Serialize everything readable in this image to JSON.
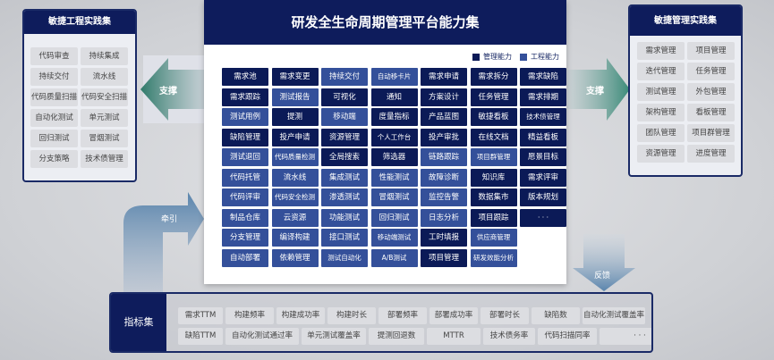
{
  "colors": {
    "engineering_dark": "#0b1a57",
    "management_light": "#34509a",
    "chip": "#dcdde1"
  },
  "left_panel": {
    "title": "敏捷工程实践集",
    "items": [
      "代码审查",
      "持续集成",
      "持续交付",
      "流水线",
      "代码质量扫描",
      "代码安全扫描",
      "自动化测试",
      "单元测试",
      "回归测试",
      "冒烟测试",
      "分支策略",
      "技术债管理"
    ]
  },
  "right_panel": {
    "title": "敏捷管理实践集",
    "items": [
      "需求管理",
      "项目管理",
      "迭代管理",
      "任务管理",
      "测试管理",
      "外包管理",
      "架构管理",
      "看板管理",
      "团队管理",
      "项目群管理",
      "资源管理",
      "进度管理"
    ]
  },
  "arrows": {
    "left": "支撑",
    "right": "支撑",
    "pull": "牵引",
    "feedback": "反馈"
  },
  "main": {
    "title": "研发全生命周期管理平台能力集",
    "legend": [
      {
        "label": "管理能力",
        "color": "#0b1a57"
      },
      {
        "label": "工程能力",
        "color": "#34509a"
      }
    ],
    "rows": [
      [
        [
          "需求池",
          "D"
        ],
        [
          "需求变更",
          "D"
        ],
        [
          "持续交付",
          "L"
        ],
        [
          "自动移卡片",
          "L"
        ],
        [
          "需求申请",
          "D"
        ],
        [
          "需求拆分",
          "D"
        ],
        [
          "需求缺陷",
          "D"
        ]
      ],
      [
        [
          "需求跟踪",
          "D"
        ],
        [
          "测试报告",
          "L"
        ],
        [
          "可视化",
          "D"
        ],
        [
          "通知",
          "D"
        ],
        [
          "方案设计",
          "D"
        ],
        [
          "任务管理",
          "D"
        ],
        [
          "需求排期",
          "D"
        ]
      ],
      [
        [
          "测试用例",
          "L"
        ],
        [
          "提测",
          "D"
        ],
        [
          "移动端",
          "L"
        ],
        [
          "度量指标",
          "D"
        ],
        [
          "产品蓝图",
          "D"
        ],
        [
          "敏捷看板",
          "D"
        ],
        [
          "技术债管理",
          "D"
        ]
      ],
      [
        [
          "缺陷管理",
          "D"
        ],
        [
          "投产申请",
          "D"
        ],
        [
          "资源管理",
          "D"
        ],
        [
          "个人工作台",
          "D"
        ],
        [
          "投产审批",
          "D"
        ],
        [
          "在线文档",
          "D"
        ],
        [
          "精益看板",
          "D"
        ]
      ],
      [
        [
          "测试退回",
          "L"
        ],
        [
          "代码质量检测",
          "L"
        ],
        [
          "全局搜索",
          "D"
        ],
        [
          "筛选器",
          "D"
        ],
        [
          "链路跟踪",
          "L"
        ],
        [
          "项目群管理",
          "L"
        ],
        [
          "愿景目标",
          "D"
        ]
      ],
      [
        [
          "代码托管",
          "L"
        ],
        [
          "流水线",
          "L"
        ],
        [
          "集成测试",
          "L"
        ],
        [
          "性能测试",
          "L"
        ],
        [
          "故障诊断",
          "L"
        ],
        [
          "知识库",
          "D"
        ],
        [
          "需求评审",
          "D"
        ]
      ],
      [
        [
          "代码评审",
          "L"
        ],
        [
          "代码安全检测",
          "L"
        ],
        [
          "渗透测试",
          "L"
        ],
        [
          "冒烟测试",
          "L"
        ],
        [
          "监控告警",
          "L"
        ],
        [
          "数据集市",
          "D"
        ],
        [
          "版本规划",
          "D"
        ]
      ],
      [
        [
          "制品仓库",
          "L"
        ],
        [
          "云资源",
          "L"
        ],
        [
          "功能测试",
          "L"
        ],
        [
          "回归测试",
          "L"
        ],
        [
          "日志分析",
          "L"
        ],
        [
          "项目跟踪",
          "D"
        ],
        [
          "· · ·",
          "D"
        ]
      ],
      [
        [
          "分支管理",
          "L"
        ],
        [
          "编译构建",
          "L"
        ],
        [
          "接口测试",
          "L"
        ],
        [
          "移动端测试",
          "L"
        ],
        [
          "工时填报",
          "D"
        ],
        [
          "供应商管理",
          "L"
        ]
      ],
      [
        [
          "自动部署",
          "L"
        ],
        [
          "依赖管理",
          "L"
        ],
        [
          "测试自动化",
          "L"
        ],
        [
          "A/B测试",
          "L"
        ],
        [
          "项目管理",
          "D"
        ],
        [
          "研发效能分析",
          "L"
        ]
      ]
    ]
  },
  "metrics": {
    "title": "指标集",
    "rows": [
      [
        "需求TTM",
        "构建频率",
        "构建成功率",
        "构建时长",
        "部署频率",
        "部署成功率",
        "部署时长",
        "缺陷数",
        "自动化测试覆盖率"
      ],
      [
        "缺陷TTM",
        "自动化测试通过率",
        "单元测试覆盖率",
        "提测回退数",
        "MTTR",
        "技术债务率",
        "代码扫描同率",
        "· · ·"
      ]
    ]
  }
}
